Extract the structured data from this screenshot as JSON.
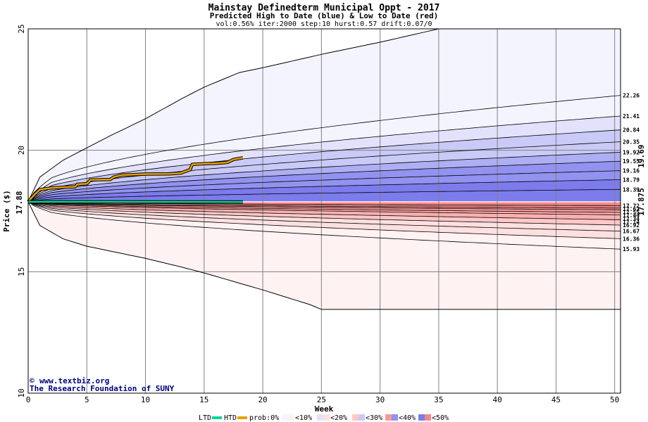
{
  "title": "Mainstay Definedterm Municipal Oppt - 2017",
  "subtitle": "Predicted High to Date (blue) &  Low to Date (red)",
  "params": "vol:0.56% iter:2000 step:10 hurst:0.57 drift:0.07/0",
  "credit": {
    "site": "www.textbiz.org",
    "org": "The Research Foundation of SUNY"
  },
  "legend": {
    "ltd": "LTD",
    "htd": "HTD",
    "prob": "prob:0%",
    "bins": [
      "<10%",
      "<20%",
      "<30%",
      "<40%",
      "<50%"
    ]
  },
  "colors": {
    "htd": "#e8a000",
    "ltd": "#00d890",
    "start_label": "#006000",
    "htd_label": "#a08000",
    "ltd_label": "#008060",
    "blue_bands": [
      "#f4f4ff",
      "#e2e2fc",
      "#cacaf8",
      "#aeaef4",
      "#9292f0",
      "#7c7cec"
    ],
    "red_bands": [
      "#fff2f2",
      "#ffe0e0",
      "#ffc8c8",
      "#ffb0b0",
      "#fa9898",
      "#f58888"
    ]
  },
  "chart_data": {
    "type": "area",
    "xlabel": "Week",
    "ylabel": "Price ($)",
    "xlim": [
      0,
      50.5
    ],
    "ylim": [
      10,
      25
    ],
    "xticks": [
      0,
      5,
      10,
      15,
      20,
      25,
      30,
      35,
      40,
      45,
      50
    ],
    "yticks": [
      10,
      15,
      20,
      25
    ],
    "grid": true,
    "start_price": "17.88",
    "htd_end_label": "19.69",
    "ltd_end_label": "17.875",
    "upper_percentile_labels": [
      "22.26",
      "21.41",
      "20.84",
      "20.35",
      "19.92",
      "19.55",
      "19.16",
      "18.79",
      "18.39"
    ],
    "lower_percentile_labels": [
      "17.72",
      "17.62",
      "17.55",
      "17.44",
      "17.34",
      "17.14",
      "16.92",
      "16.67",
      "16.36",
      "15.93"
    ],
    "upper_envelope": {
      "x": [
        0,
        1,
        3,
        5,
        7,
        10,
        13,
        15,
        18,
        20,
        25,
        30,
        35,
        40,
        45,
        50
      ],
      "y": [
        17.88,
        18.9,
        19.6,
        20.1,
        20.6,
        21.3,
        22.1,
        22.6,
        23.2,
        23.4,
        23.95,
        24.45,
        25.0,
        25.0,
        25.0,
        25.0
      ]
    },
    "lower_envelope": {
      "x": [
        0,
        1,
        3,
        5,
        7,
        10,
        13,
        15,
        20,
        24,
        25,
        50
      ],
      "y": [
        17.88,
        16.9,
        16.35,
        16.05,
        15.85,
        15.55,
        15.2,
        14.95,
        14.25,
        13.65,
        13.45,
        13.45
      ]
    },
    "upper_levels": [
      22.26,
      21.41,
      20.84,
      20.35,
      19.92,
      19.55,
      19.16,
      18.79,
      18.39
    ],
    "lower_levels": [
      15.93,
      16.36,
      16.67,
      16.92,
      17.14,
      17.34,
      17.44,
      17.55,
      17.62,
      17.72
    ],
    "series": [
      {
        "name": "HTD",
        "x": [
          0,
          0.3,
          0.6,
          1,
          2,
          3,
          4,
          4.2,
          5,
          5.3,
          7,
          7.3,
          8,
          9,
          10,
          12,
          13,
          13.8,
          14,
          15,
          16,
          17,
          17.5,
          18.3
        ],
        "y": [
          17.88,
          18.05,
          18.2,
          18.38,
          18.45,
          18.48,
          18.5,
          18.6,
          18.62,
          18.78,
          18.8,
          18.9,
          18.98,
          19.0,
          19.02,
          19.03,
          19.06,
          19.2,
          19.42,
          19.45,
          19.46,
          19.5,
          19.62,
          19.69
        ]
      },
      {
        "name": "LTD",
        "x": [
          0,
          1,
          5,
          10,
          15,
          18.3
        ],
        "y": [
          17.88,
          17.88,
          17.878,
          17.877,
          17.876,
          17.875
        ]
      }
    ]
  }
}
